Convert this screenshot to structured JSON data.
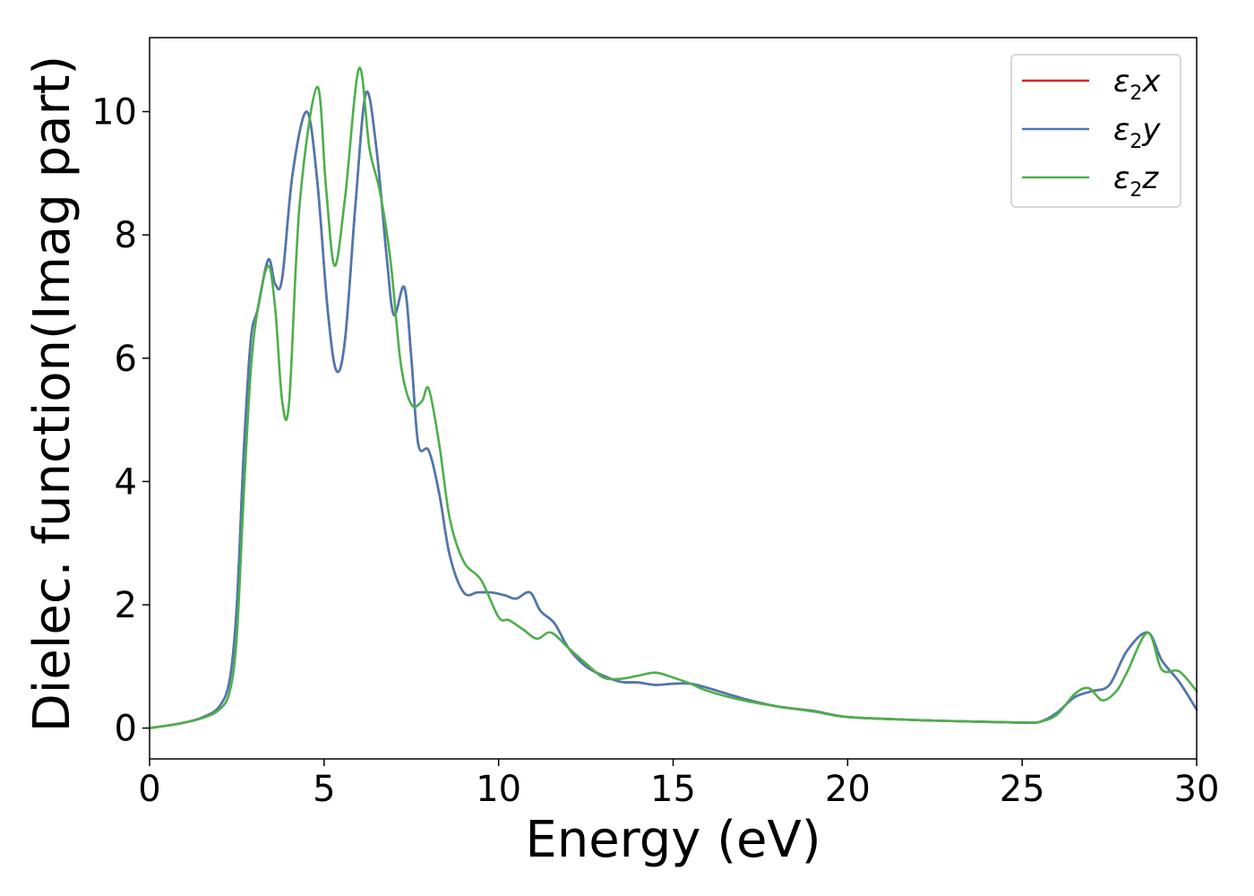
{
  "chart_data": {
    "type": "line",
    "xlabel": "Energy (eV)",
    "ylabel": "Dielec. function(Imag part)",
    "xlim": [
      0,
      30
    ],
    "ylim": [
      -0.5,
      11.2
    ],
    "xticks": [
      0,
      5,
      10,
      15,
      20,
      25,
      30
    ],
    "yticks": [
      0,
      2,
      4,
      6,
      8,
      10
    ],
    "grid": false,
    "legend_position": "top-right",
    "series": [
      {
        "name": "ε2x",
        "label_main": "ε",
        "label_sub": "2",
        "label_var": "x",
        "color": "#e41a1c",
        "x": [
          0,
          0.5,
          1,
          1.5,
          2,
          2.3,
          2.5,
          2.7,
          2.9,
          3.1,
          3.4,
          3.6,
          3.8,
          4.1,
          4.5,
          4.8,
          5.1,
          5.35,
          5.6,
          5.9,
          6.2,
          6.5,
          6.8,
          7.0,
          7.3,
          7.5,
          7.7,
          8.0,
          8.3,
          8.6,
          9.0,
          9.4,
          9.8,
          10.2,
          10.5,
          10.9,
          11.2,
          11.6,
          12.0,
          12.5,
          13.0,
          13.5,
          14.0,
          14.5,
          15.0,
          15.5,
          16.0,
          17.0,
          18.0,
          19.0,
          20.0,
          22.0,
          24.0,
          25.0,
          25.5,
          26.0,
          26.5,
          27.0,
          27.5,
          28.0,
          28.6,
          29.0,
          29.5,
          30.0
        ],
        "values": [
          0,
          0.04,
          0.09,
          0.17,
          0.35,
          0.8,
          2.0,
          4.5,
          6.3,
          6.8,
          7.6,
          7.2,
          7.3,
          9.0,
          10.0,
          8.9,
          6.8,
          5.8,
          6.3,
          8.5,
          10.3,
          9.4,
          7.6,
          6.7,
          7.15,
          6.0,
          4.6,
          4.5,
          3.8,
          2.8,
          2.2,
          2.2,
          2.2,
          2.15,
          2.1,
          2.2,
          1.9,
          1.7,
          1.3,
          1.0,
          0.85,
          0.75,
          0.74,
          0.7,
          0.72,
          0.72,
          0.65,
          0.48,
          0.35,
          0.28,
          0.18,
          0.13,
          0.1,
          0.09,
          0.1,
          0.25,
          0.5,
          0.6,
          0.7,
          1.25,
          1.55,
          1.1,
          0.75,
          0.3
        ]
      },
      {
        "name": "ε2y",
        "label_main": "ε",
        "label_sub": "2",
        "label_var": "y",
        "color": "#4a7ab0",
        "x": [
          0,
          0.5,
          1,
          1.5,
          2,
          2.3,
          2.5,
          2.7,
          2.9,
          3.1,
          3.4,
          3.6,
          3.8,
          4.1,
          4.5,
          4.8,
          5.1,
          5.35,
          5.6,
          5.9,
          6.2,
          6.5,
          6.8,
          7.0,
          7.3,
          7.5,
          7.7,
          8.0,
          8.3,
          8.6,
          9.0,
          9.4,
          9.8,
          10.2,
          10.5,
          10.9,
          11.2,
          11.6,
          12.0,
          12.5,
          13.0,
          13.5,
          14.0,
          14.5,
          15.0,
          15.5,
          16.0,
          17.0,
          18.0,
          19.0,
          20.0,
          22.0,
          24.0,
          25.0,
          25.5,
          26.0,
          26.5,
          27.0,
          27.5,
          28.0,
          28.6,
          29.0,
          29.5,
          30.0
        ],
        "values": [
          0,
          0.04,
          0.09,
          0.17,
          0.35,
          0.8,
          2.0,
          4.5,
          6.3,
          6.8,
          7.6,
          7.2,
          7.3,
          9.0,
          10.0,
          8.9,
          6.8,
          5.8,
          6.3,
          8.5,
          10.3,
          9.4,
          7.6,
          6.7,
          7.15,
          6.0,
          4.6,
          4.5,
          3.8,
          2.8,
          2.2,
          2.2,
          2.2,
          2.15,
          2.1,
          2.2,
          1.9,
          1.7,
          1.3,
          1.0,
          0.85,
          0.75,
          0.74,
          0.7,
          0.72,
          0.72,
          0.65,
          0.48,
          0.35,
          0.28,
          0.18,
          0.13,
          0.1,
          0.09,
          0.1,
          0.25,
          0.5,
          0.6,
          0.7,
          1.25,
          1.55,
          1.1,
          0.75,
          0.3
        ]
      },
      {
        "name": "ε2z",
        "label_main": "ε",
        "label_sub": "2",
        "label_var": "z",
        "color": "#4daf4a",
        "x": [
          0,
          0.5,
          1,
          1.5,
          2,
          2.3,
          2.5,
          2.7,
          2.9,
          3.1,
          3.4,
          3.6,
          3.8,
          4.0,
          4.3,
          4.8,
          5.05,
          5.3,
          5.6,
          6.0,
          6.3,
          6.6,
          6.9,
          7.2,
          7.5,
          7.8,
          8.0,
          8.3,
          8.6,
          9.0,
          9.5,
          10.0,
          10.3,
          10.7,
          11.1,
          11.5,
          12.0,
          12.5,
          13.0,
          13.5,
          14.0,
          14.5,
          15.0,
          15.5,
          16.0,
          17.0,
          18.0,
          19.0,
          20.0,
          22.0,
          24.0,
          25.0,
          25.5,
          26.0,
          26.5,
          26.9,
          27.3,
          27.7,
          28.0,
          28.6,
          29.0,
          29.5,
          30.0
        ],
        "values": [
          0,
          0.04,
          0.09,
          0.16,
          0.3,
          0.6,
          1.5,
          3.8,
          5.8,
          6.8,
          7.5,
          6.8,
          5.3,
          5.3,
          8.5,
          10.4,
          8.8,
          7.5,
          8.6,
          10.7,
          9.4,
          8.7,
          7.6,
          5.9,
          5.25,
          5.3,
          5.5,
          4.6,
          3.4,
          2.7,
          2.4,
          1.8,
          1.75,
          1.6,
          1.45,
          1.55,
          1.3,
          1.05,
          0.82,
          0.8,
          0.85,
          0.9,
          0.82,
          0.72,
          0.6,
          0.45,
          0.35,
          0.27,
          0.18,
          0.13,
          0.1,
          0.09,
          0.1,
          0.22,
          0.55,
          0.65,
          0.45,
          0.6,
          0.9,
          1.55,
          0.95,
          0.92,
          0.6
        ]
      }
    ]
  }
}
